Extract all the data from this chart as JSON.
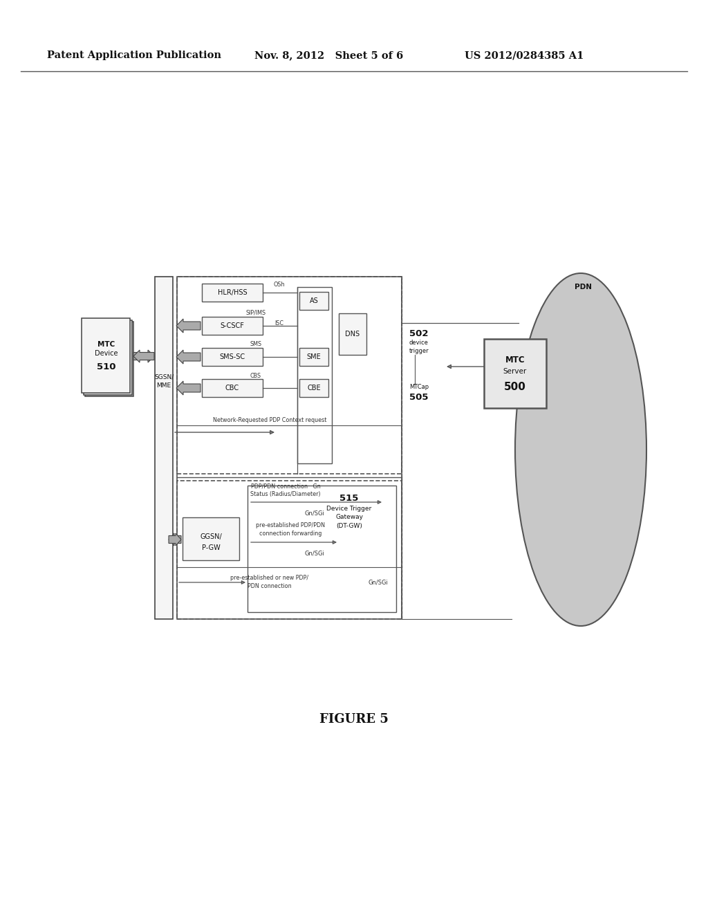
{
  "header_left": "Patent Application Publication",
  "header_mid": "Nov. 8, 2012   Sheet 5 of 6",
  "header_right": "US 2012/0284385 A1",
  "figure_caption": "FIGURE 5",
  "bg_color": "#ffffff"
}
